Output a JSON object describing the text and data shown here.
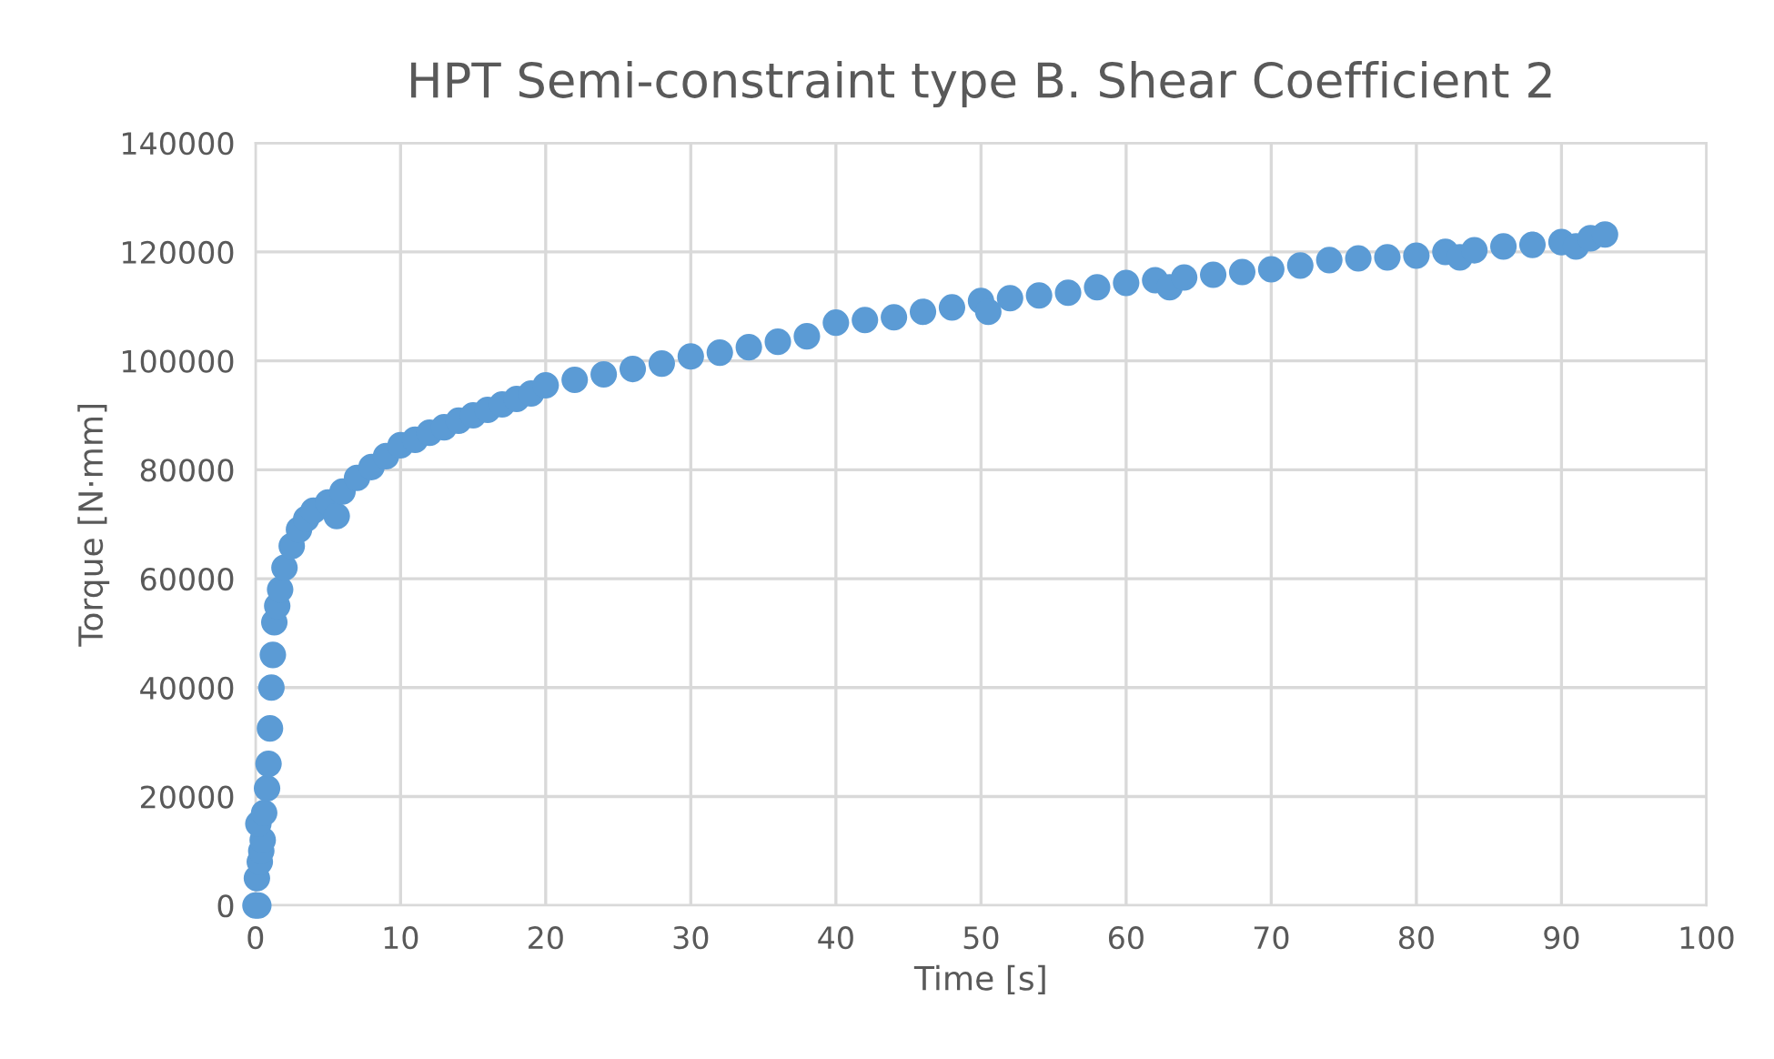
{
  "chart_data": {
    "type": "scatter",
    "title": "HPT Semi-constraint type B. Shear Coefficient 2",
    "xlabel": "Time [s]",
    "ylabel": "Torque [N·mm]",
    "series": [
      {
        "color": "#5b9bd5",
        "x": [
          0,
          0.2,
          0.1,
          0.3,
          0.4,
          0.5,
          0.2,
          0.6,
          0.8,
          0.9,
          1.0,
          1.1,
          1.2,
          1.3,
          1.5,
          1.7,
          2,
          2.5,
          3,
          3.5,
          4,
          5,
          5.6,
          6,
          7,
          8,
          9,
          10,
          11,
          12,
          13,
          14,
          15,
          16,
          17,
          18,
          19,
          20,
          22,
          24,
          26,
          28,
          30,
          32,
          34,
          36,
          38,
          40,
          42,
          44,
          46,
          48,
          50,
          50.5,
          52,
          54,
          56,
          58,
          60,
          62,
          63,
          64,
          66,
          68,
          70,
          72,
          74,
          76,
          78,
          80,
          82,
          83,
          84,
          86,
          88,
          90,
          91,
          92,
          93
        ],
        "values": [
          0,
          0,
          5000,
          8000,
          10000,
          12000,
          15000,
          17000,
          21500,
          26000,
          32500,
          40000,
          46000,
          52000,
          55000,
          58000,
          62000,
          66000,
          69000,
          71000,
          72500,
          74000,
          71500,
          76000,
          78500,
          80500,
          82500,
          84500,
          85500,
          86800,
          87800,
          89000,
          90000,
          91000,
          92000,
          93000,
          94000,
          95500,
          96500,
          97500,
          98500,
          99500,
          100800,
          101500,
          102500,
          103500,
          104500,
          107000,
          107500,
          108000,
          109000,
          109800,
          111000,
          109000,
          111500,
          112000,
          112500,
          113500,
          114300,
          114800,
          113500,
          115300,
          115800,
          116300,
          116800,
          117500,
          118500,
          118800,
          119000,
          119300,
          120000,
          119000,
          120300,
          121000,
          121300,
          121800,
          121000,
          122500,
          123200
        ]
      }
    ],
    "xlim": [
      0,
      100
    ],
    "xticks": [
      0,
      10,
      20,
      30,
      40,
      50,
      60,
      70,
      80,
      90,
      100
    ],
    "ylim": [
      0,
      140000
    ],
    "yticks": [
      0,
      20000,
      40000,
      60000,
      80000,
      100000,
      120000,
      140000
    ],
    "grid": true,
    "marker": "circle"
  }
}
